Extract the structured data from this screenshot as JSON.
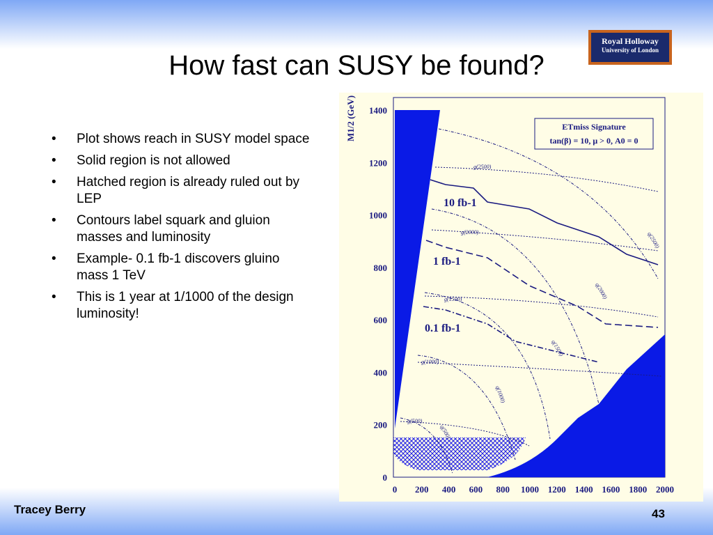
{
  "header": {
    "title": "How fast can SUSY be found?",
    "logo": [
      "Royal Holloway",
      "University of London"
    ]
  },
  "bullets": [
    "Plot shows reach in SUSY model space",
    "Solid region is not allowed",
    "Hatched region is already ruled out by LEP",
    "Contours label squark and gluion masses and luminosity",
    "Example- 0.1 fb-1 discovers gluino mass 1 TeV",
    "This is 1 year at 1/1000 of the design luminosity!"
  ],
  "figure": {
    "y_axis_label": "M1/2 (GeV)",
    "yticks": [
      0,
      200,
      400,
      600,
      800,
      1000,
      1200,
      1400
    ],
    "xticks": [
      0,
      200,
      400,
      600,
      800,
      1000,
      1200,
      1400,
      1600,
      1800,
      2000
    ],
    "legend": [
      "ETmiss Signature",
      "tan(β) = 10, μ > 0, A0 = 0"
    ],
    "contour_labels": [
      "10 fb-1",
      "1 fb-1",
      "0.1 fb-1"
    ],
    "mass_labels": [
      "g(2500)",
      "g(2000)",
      "g(1500)",
      "g(1000)",
      "g(500)",
      "q(2500)",
      "q(2000)",
      "q(1500)",
      "q(1000)",
      "q(500)"
    ]
  },
  "footer": {
    "author": "Tracey Berry",
    "page": "43"
  }
}
